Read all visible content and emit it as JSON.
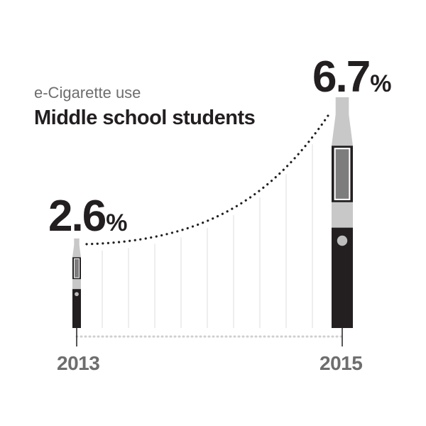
{
  "chart_data": {
    "type": "bar",
    "subtitle": "e-Cigarette use",
    "title": "Middle school students",
    "categories": [
      "2013",
      "2015"
    ],
    "values": [
      2.6,
      6.7
    ],
    "value_labels": [
      "2.6",
      "6.7"
    ],
    "unit": "%",
    "ylim": [
      0,
      6.7
    ],
    "grid": true,
    "colors": {
      "body": "#231f20",
      "band": "#c8c8c8",
      "tank": "#7d7d7d",
      "tank_frame": "#ffffff",
      "button": "#bdbdbd",
      "grid": "#dcdcdc",
      "dots": "#231f20",
      "year_text": "#6e6e6e",
      "subtitle_text": "#6e6e6e"
    }
  }
}
